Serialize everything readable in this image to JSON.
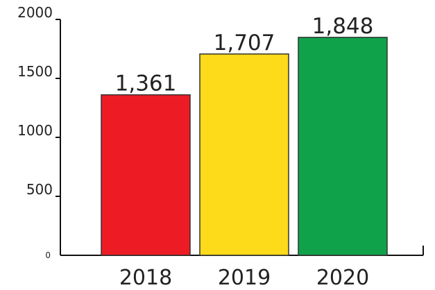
{
  "chart_data": {
    "type": "bar",
    "categories": [
      "2018",
      "2019",
      "2020"
    ],
    "values": [
      1361,
      1707,
      1848
    ],
    "data_labels": [
      "1,361",
      "1,707",
      "1,848"
    ],
    "colors": [
      "#ed1c24",
      "#fdda1a",
      "#0fa24a"
    ],
    "yticks": [
      0,
      500,
      1000,
      1500,
      2000
    ],
    "ytick_labels": [
      "0",
      "500",
      "1000",
      "1500",
      "2000"
    ],
    "ylim": [
      0,
      2000
    ],
    "grid": false,
    "legend": "none"
  }
}
